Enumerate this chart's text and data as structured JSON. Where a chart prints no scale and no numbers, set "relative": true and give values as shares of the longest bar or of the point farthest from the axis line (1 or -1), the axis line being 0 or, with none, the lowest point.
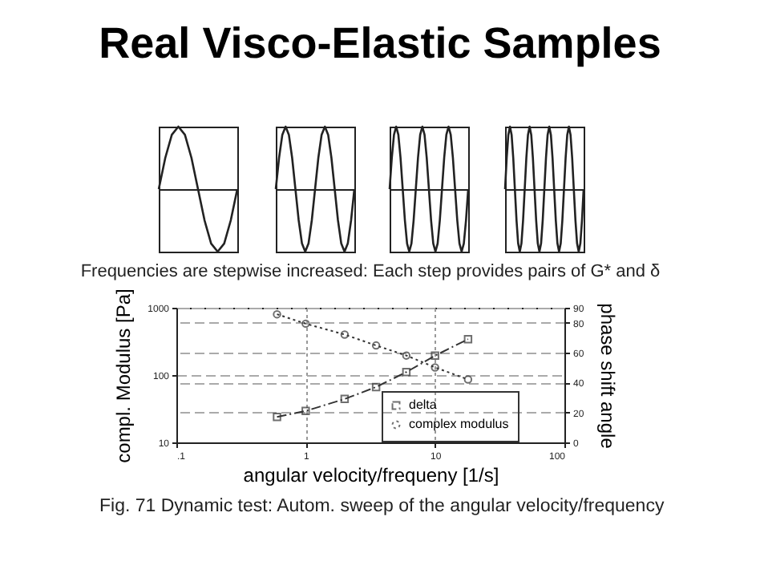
{
  "chart_data": [
    {
      "type": "other",
      "title": "Real Visco-Elastic Samples"
    },
    {
      "type": "line",
      "relative": true,
      "color": "#222222",
      "categories": [
        null,
        null,
        null,
        null,
        null,
        null,
        null,
        null,
        null,
        null,
        null,
        null,
        null
      ],
      "values": [
        0,
        0.5,
        0.87,
        1,
        0.87,
        0.5,
        0,
        -0.5,
        -0.87,
        -1,
        -0.87,
        -0.5,
        0
      ]
    },
    {
      "type": "line",
      "relative": true,
      "color": "#222222",
      "categories": [
        null,
        null,
        null,
        null,
        null,
        null,
        null,
        null,
        null,
        null,
        null,
        null,
        null,
        null,
        null,
        null,
        null,
        null,
        null,
        null,
        null,
        null,
        null,
        null,
        null
      ],
      "values": [
        0,
        0.5,
        0.87,
        1,
        0.87,
        0.5,
        0,
        -0.5,
        -0.87,
        -1,
        -0.87,
        -0.5,
        0,
        0.5,
        0.87,
        1,
        0.87,
        0.5,
        0,
        -0.5,
        -0.87,
        -1,
        -0.87,
        -0.5,
        0
      ]
    },
    {
      "type": "line",
      "relative": true,
      "color": "#222222",
      "categories": [
        null,
        null,
        null,
        null,
        null,
        null,
        null,
        null,
        null,
        null,
        null,
        null,
        null,
        null,
        null,
        null,
        null,
        null,
        null,
        null,
        null,
        null,
        null,
        null,
        null,
        null,
        null,
        null,
        null,
        null,
        null,
        null,
        null,
        null,
        null,
        null,
        null
      ],
      "values": [
        0,
        0.5,
        0.87,
        1,
        0.87,
        0.5,
        0,
        -0.5,
        -0.87,
        -1,
        -0.87,
        -0.5,
        0,
        0.5,
        0.87,
        1,
        0.87,
        0.5,
        0,
        -0.5,
        -0.87,
        -1,
        -0.87,
        -0.5,
        0,
        0.5,
        0.87,
        1,
        0.87,
        0.5,
        0,
        -0.5,
        -0.87,
        -1,
        -0.87,
        -0.5,
        0
      ]
    },
    {
      "type": "line",
      "relative": true,
      "color": "#222222",
      "categories": [
        null,
        null,
        null,
        null,
        null,
        null,
        null,
        null,
        null,
        null,
        null,
        null,
        null,
        null,
        null,
        null,
        null,
        null,
        null,
        null,
        null,
        null,
        null,
        null,
        null,
        null,
        null,
        null,
        null,
        null,
        null,
        null,
        null,
        null,
        null,
        null,
        null,
        null,
        null,
        null,
        null,
        null,
        null,
        null,
        null,
        null,
        null,
        null,
        null
      ],
      "values": [
        0,
        0.5,
        0.87,
        1,
        0.87,
        0.5,
        0,
        -0.5,
        -0.87,
        -1,
        -0.87,
        -0.5,
        0,
        0.5,
        0.87,
        1,
        0.87,
        0.5,
        0,
        -0.5,
        -0.87,
        -1,
        -0.87,
        -0.5,
        0,
        0.5,
        0.87,
        1,
        0.87,
        0.5,
        0,
        -0.5,
        -0.87,
        -1,
        -0.87,
        -0.5,
        0,
        0.5,
        0.87,
        1,
        0.87,
        0.5,
        0,
        -0.5,
        -0.87,
        -1,
        -0.87,
        -0.5,
        0
      ]
    },
    {
      "type": "line",
      "title": "Frequencies are stepwise increased: Each step provides pairs of G* and δ",
      "xlabel": "angular velocity/frequeny [1/s]",
      "ylabel": "compl. Modulus [Pa]",
      "y2label": "phase shift angle",
      "annotations": [
        "Fig. 71  Dynamic test: Autom. sweep of the angular velocity/frequency"
      ],
      "x": [
        0.6,
        1,
        2,
        3.5,
        6,
        10,
        18
      ],
      "series": [
        {
          "name": "delta",
          "color": "#333333",
          "axis": "y2",
          "marker": "square",
          "line_style": "dashed",
          "values": [
            17,
            21,
            29,
            37,
            47,
            58,
            69
          ]
        },
        {
          "name": "complex modulus",
          "color": "#333333",
          "marker": "circle",
          "line_style": "dotted",
          "values": [
            800,
            580,
            400,
            275,
            195,
            130,
            86
          ]
        }
      ],
      "log": "xy",
      "xlim": [
        0.1,
        100
      ],
      "xticks": [
        {
          "value": 0.1,
          "label": ".1"
        },
        1,
        10,
        100
      ],
      "ylim": [
        10,
        1000
      ],
      "yticks": [
        10,
        100,
        1000
      ],
      "y2lim": [
        0,
        90
      ],
      "y2ticks": [
        0,
        20,
        40,
        60,
        80,
        90
      ],
      "grid": true,
      "legend": "bottom right"
    }
  ]
}
